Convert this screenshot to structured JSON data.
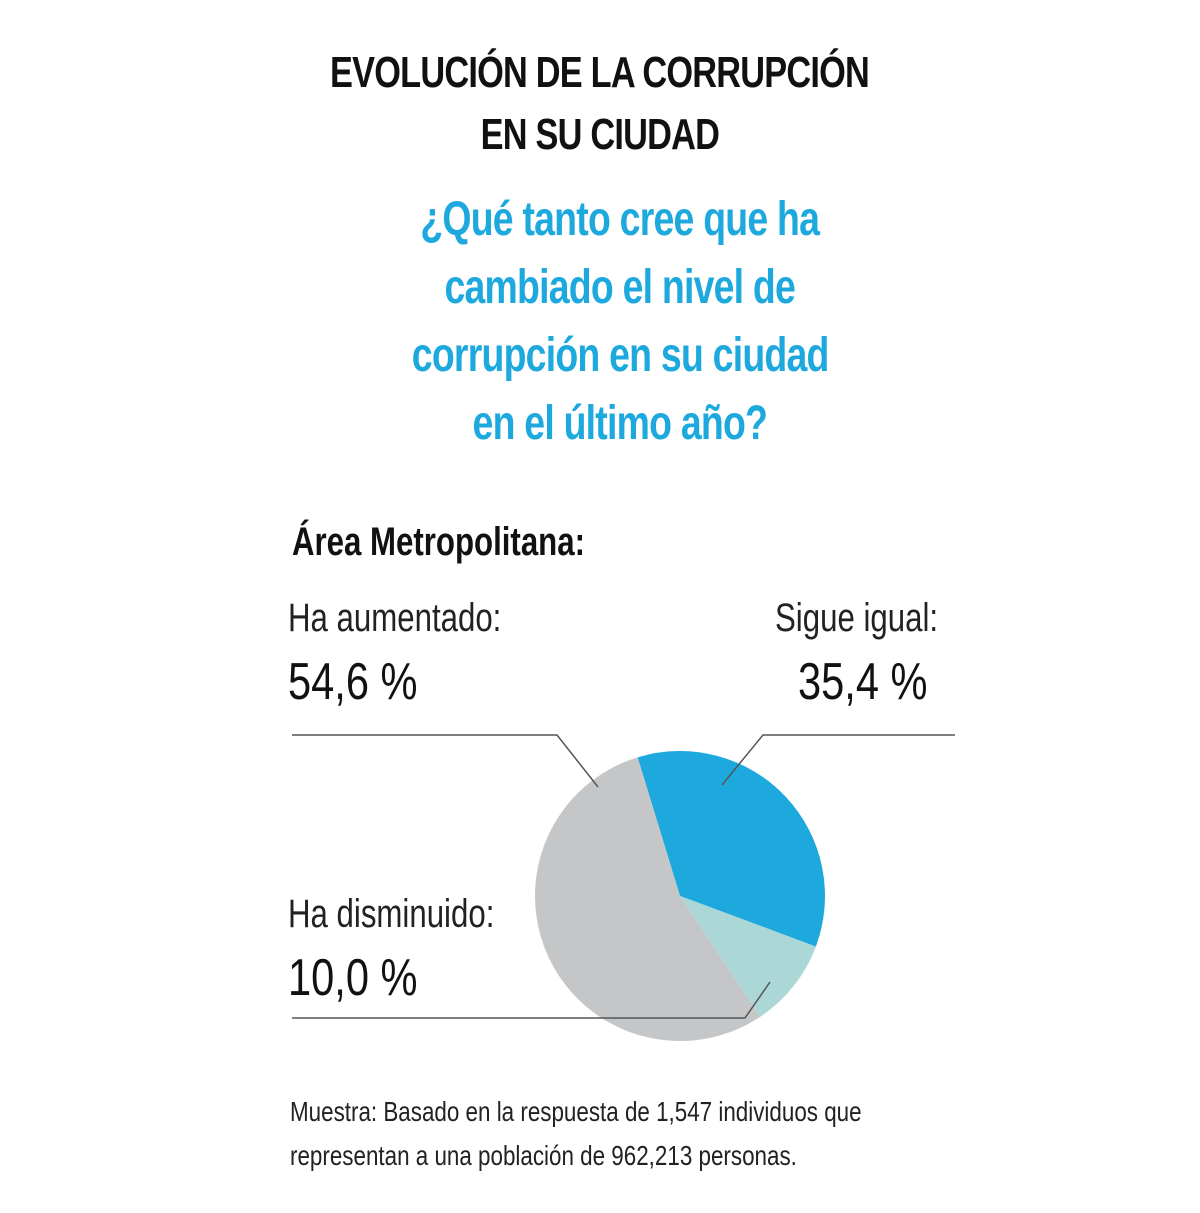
{
  "chart_data": {
    "type": "pie",
    "title": [
      "EVOLUCIÓN DE LA CORRUPCIÓN",
      "EN SU CIUDAD"
    ],
    "subtitle": [
      "¿Qué tanto cree que ha",
      "cambiado el nivel de",
      "corrupción en su ciudad",
      "en el último año?"
    ],
    "group_label": "Área Metropolitana:",
    "slices": [
      {
        "name": "Sigue igual:",
        "value": 35.4,
        "label": "35,4 %",
        "color": "#1ea9de"
      },
      {
        "name": "Ha disminuido:",
        "value": 10.0,
        "label": "10,0 %",
        "color": "#abd7d6"
      },
      {
        "name": "Ha aumentado:",
        "value": 54.6,
        "label": "54,6 %",
        "color": "#c5c6c8"
      }
    ],
    "note": [
      "Muestra: Basado en la respuesta de 1,547 individuos que",
      "representan a una población de 962,213 personas."
    ]
  }
}
